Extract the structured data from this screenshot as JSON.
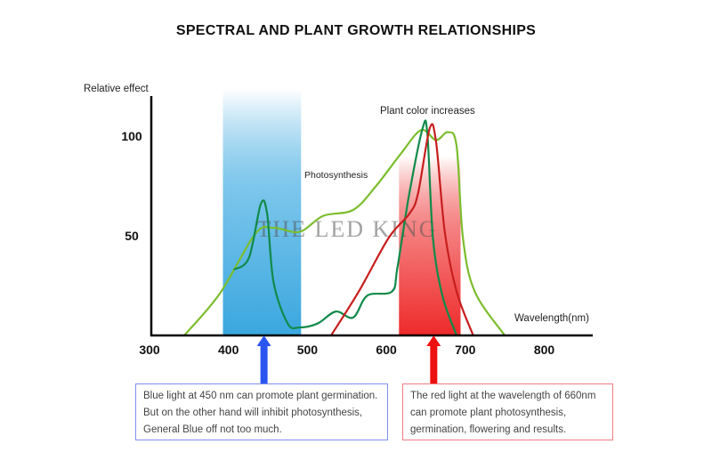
{
  "chart_data": {
    "type": "line",
    "title": "SPECTRAL AND PLANT GROWTH RELATIONSHIPS",
    "xlabel": "Wavelength(nm)",
    "ylabel": "Relative effect",
    "xlim": [
      300,
      850
    ],
    "ylim": [
      0,
      110
    ],
    "xticks": [
      300,
      400,
      500,
      600,
      700,
      800
    ],
    "yticks": [
      50,
      100
    ],
    "grid": false,
    "annotations": [
      "Photosynthesis",
      "Plant color increases"
    ],
    "watermark": "THE LED KING",
    "bands": [
      {
        "name": "blue-band",
        "range": [
          393,
          492
        ],
        "color": "#3aa7de"
      },
      {
        "name": "red-band",
        "range": [
          616,
          694
        ],
        "color": "#ee2a2a"
      }
    ],
    "arrows": [
      {
        "name": "blue-arrow",
        "x": 445,
        "color": "#2b55f0"
      },
      {
        "name": "red-arrow",
        "x": 660,
        "color": "#ee1111"
      }
    ],
    "series": [
      {
        "color": "#7cbd2e",
        "points": [
          [
            344,
            0
          ],
          [
            389,
            21
          ],
          [
            434,
            51
          ],
          [
            457,
            54
          ],
          [
            490,
            52
          ],
          [
            520,
            60
          ],
          [
            558,
            63
          ],
          [
            587,
            75
          ],
          [
            618,
            91
          ],
          [
            644,
            103
          ],
          [
            663,
            98
          ],
          [
            678,
            102
          ],
          [
            689,
            95
          ],
          [
            697,
            49
          ],
          [
            712,
            22
          ],
          [
            750,
            0
          ]
        ]
      },
      {
        "color": "#118a4a",
        "points": [
          [
            407,
            33
          ],
          [
            426,
            39
          ],
          [
            441,
            66
          ],
          [
            449,
            61
          ],
          [
            457,
            27
          ],
          [
            475,
            6
          ],
          [
            490,
            4
          ],
          [
            513,
            6
          ],
          [
            536,
            12
          ],
          [
            558,
            9
          ],
          [
            576,
            20
          ],
          [
            607,
            22
          ],
          [
            614,
            34
          ],
          [
            629,
            71
          ],
          [
            646,
            104
          ],
          [
            652,
            101
          ],
          [
            659,
            49
          ],
          [
            671,
            20
          ],
          [
            689,
            0
          ]
        ]
      },
      {
        "color": "#c81e1e",
        "points": [
          [
            530,
            0
          ],
          [
            565,
            22
          ],
          [
            603,
            49
          ],
          [
            629,
            61
          ],
          [
            640,
            71
          ],
          [
            655,
            104
          ],
          [
            663,
            97
          ],
          [
            674,
            52
          ],
          [
            689,
            22
          ],
          [
            710,
            0
          ]
        ]
      }
    ]
  },
  "notes": {
    "blue": [
      "Blue light at 450 nm can promote plant germination.",
      "But on the other hand will inhibit photosynthesis,",
      "General Blue off not too much."
    ],
    "red": [
      "The red light at the wavelength of 660nm",
      "can promote plant photosynthesis,",
      "germination, flowering and results."
    ]
  }
}
